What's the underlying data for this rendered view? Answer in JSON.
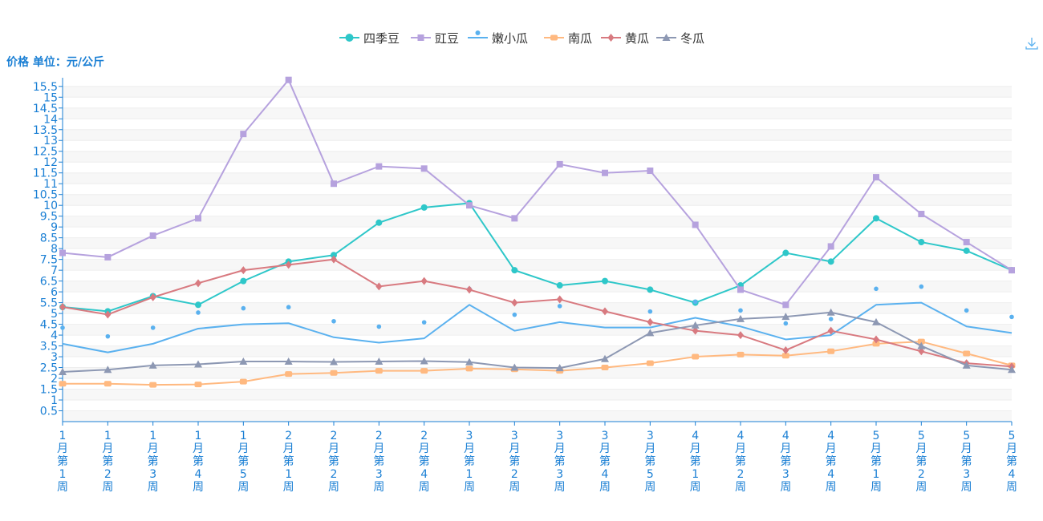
{
  "chart_data": {
    "type": "line",
    "ylabel": "价格 单位：元/公斤",
    "ylim": [
      0.5,
      15.5
    ],
    "yticks": [
      "0.5",
      "1",
      "1.5",
      "2",
      "2.5",
      "3",
      "3.5",
      "4",
      "4.5",
      "5",
      "5.5",
      "6",
      "6.5",
      "7",
      "7.5",
      "8",
      "8.5",
      "9",
      "9.5",
      "10",
      "10.5",
      "11",
      "11.5",
      "12",
      "12.5",
      "13",
      "13.5",
      "14",
      "14.5",
      "15",
      "15.5"
    ],
    "categories": [
      "1月第1周",
      "1月第2周",
      "1月第3周",
      "1月第4周",
      "1月第5周",
      "2月第1周",
      "2月第2周",
      "2月第3周",
      "2月第4周",
      "3月第1周",
      "3月第2周",
      "3月第3周",
      "3月第4周",
      "3月第5周",
      "4月第1周",
      "4月第2周",
      "4月第3周",
      "4月第4周",
      "5月第1周",
      "5月第2周",
      "5月第3周",
      "5月第4周"
    ],
    "grid": true,
    "legend_position": "top-center",
    "series": [
      {
        "name": "四季豆",
        "color": "#2ec7c9",
        "marker": "circle",
        "values": [
          5.3,
          5.1,
          5.8,
          5.4,
          6.5,
          7.4,
          7.7,
          9.2,
          9.9,
          10.1,
          7.0,
          6.3,
          6.5,
          6.1,
          5.5,
          6.3,
          7.8,
          7.4,
          9.4,
          8.3,
          7.9,
          7.0
        ]
      },
      {
        "name": "豇豆",
        "color": "#b6a2de",
        "marker": "square",
        "values": [
          7.8,
          7.6,
          8.6,
          9.4,
          13.3,
          15.8,
          11.0,
          11.8,
          11.7,
          10.0,
          9.4,
          11.9,
          11.5,
          11.6,
          9.1,
          6.1,
          5.4,
          8.1,
          11.3,
          9.6,
          8.3,
          7.0
        ]
      },
      {
        "name": "嫩小瓜",
        "color": "#5ab1ef",
        "marker": "pin",
        "values": [
          3.6,
          3.2,
          3.6,
          4.3,
          4.5,
          4.55,
          3.9,
          3.65,
          3.85,
          5.4,
          4.2,
          4.6,
          4.35,
          4.35,
          4.8,
          4.4,
          3.8,
          4.0,
          5.4,
          5.5,
          4.4,
          4.1
        ]
      },
      {
        "name": "南瓜",
        "color": "#ffb980",
        "marker": "roundRect",
        "values": [
          1.75,
          1.75,
          1.7,
          1.72,
          1.85,
          2.2,
          2.25,
          2.35,
          2.35,
          2.45,
          2.42,
          2.35,
          2.5,
          2.7,
          3.0,
          3.1,
          3.05,
          3.25,
          3.6,
          3.7,
          3.15,
          2.6
        ]
      },
      {
        "name": "黄瓜",
        "color": "#d87a80",
        "marker": "diamond",
        "values": [
          5.3,
          4.95,
          5.75,
          6.4,
          7.0,
          7.25,
          7.5,
          6.25,
          6.5,
          6.1,
          5.5,
          5.65,
          5.1,
          4.6,
          4.2,
          4.0,
          3.3,
          4.2,
          3.8,
          3.25,
          2.7,
          2.55
        ]
      },
      {
        "name": "冬瓜",
        "color": "#8d98b3",
        "marker": "triangle",
        "values": [
          2.3,
          2.4,
          2.6,
          2.65,
          2.78,
          2.78,
          2.76,
          2.78,
          2.8,
          2.75,
          2.5,
          2.48,
          2.9,
          4.1,
          4.45,
          4.75,
          4.85,
          5.05,
          4.6,
          3.5,
          2.6,
          2.4
        ]
      }
    ]
  }
}
